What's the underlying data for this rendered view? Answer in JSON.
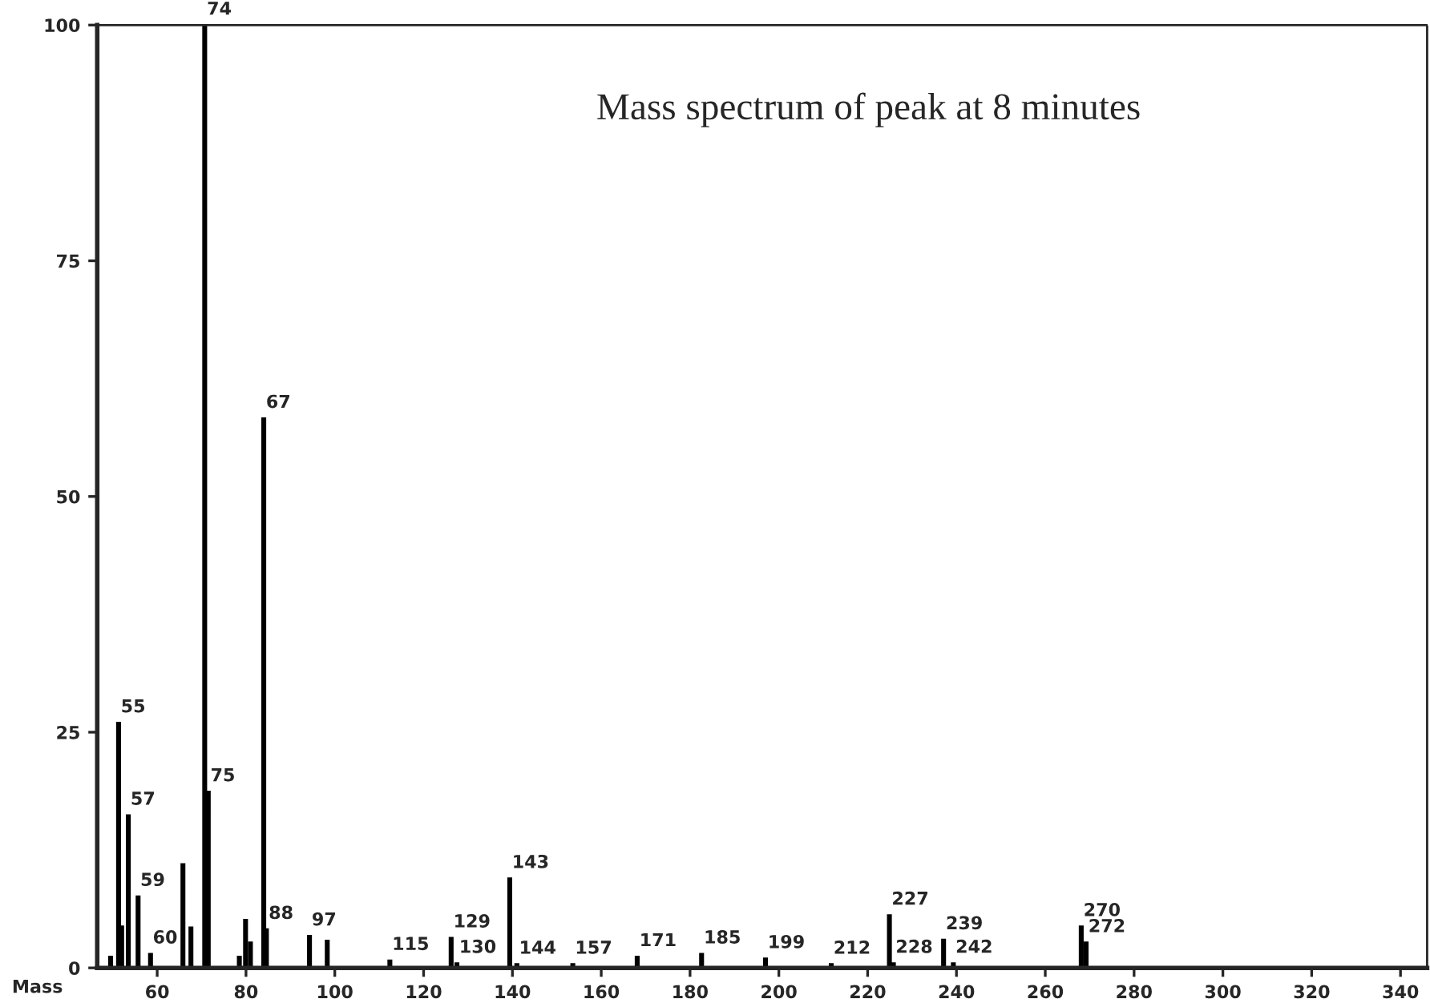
{
  "chart_data": {
    "type": "bar",
    "title": "Mass spectrum of peak at 8 minutes",
    "xlabel": "Mass",
    "x": [
      49.5,
      51.3,
      52.0,
      53.5,
      55.7,
      58.5,
      65.8,
      67.6,
      70.7,
      71.5,
      78.5,
      79.9,
      81.0,
      84.0,
      84.6,
      94.3,
      98.3,
      112.4,
      126.2,
      127.5,
      139.4,
      141.0,
      153.6,
      168.1,
      182.6,
      197.0,
      211.8,
      224.9,
      225.8,
      237.1,
      239.3,
      268.1,
      269.2
    ],
    "series": [
      {
        "color": "#000000",
        "values": [
          1.2,
          26,
          4.4,
          16.2,
          7.6,
          1.5,
          11,
          4.3,
          100,
          18.7,
          1.2,
          5.1,
          2.7,
          58.3,
          4.1,
          3.4,
          2.9,
          0.8,
          3.2,
          0.5,
          9.5,
          0.4,
          0.4,
          1.2,
          1.5,
          1.0,
          0.4,
          5.6,
          0.5,
          3.0,
          0.5,
          4.4,
          2.7
        ]
      }
    ],
    "annotations": [
      {
        "text": "55",
        "x": 51.3,
        "y": 26
      },
      {
        "text": "57",
        "x": 53.5,
        "y": 16.2
      },
      {
        "text": "59",
        "x": 55.7,
        "y": 7.6
      },
      {
        "text": "60",
        "x": 58.5,
        "y": 1.5
      },
      {
        "text": "74",
        "x": 70.7,
        "y": 100
      },
      {
        "text": "75",
        "x": 71.5,
        "y": 18.7
      },
      {
        "text": "67",
        "x": 84.0,
        "y": 58.3
      },
      {
        "text": "88",
        "x": 84.6,
        "y": 4.1
      },
      {
        "text": "97",
        "x": 94.3,
        "y": 3.4
      },
      {
        "text": "115",
        "x": 112.4,
        "y": 0.8
      },
      {
        "text": "129",
        "x": 126.2,
        "y": 3.2
      },
      {
        "text": "130",
        "x": 127.5,
        "y": 0.5
      },
      {
        "text": "143",
        "x": 139.4,
        "y": 9.5
      },
      {
        "text": "144",
        "x": 141.0,
        "y": 0.4
      },
      {
        "text": "157",
        "x": 153.6,
        "y": 0.4
      },
      {
        "text": "171",
        "x": 168.1,
        "y": 1.2
      },
      {
        "text": "185",
        "x": 182.6,
        "y": 1.5
      },
      {
        "text": "199",
        "x": 197.0,
        "y": 1.0
      },
      {
        "text": "212",
        "x": 211.8,
        "y": 0.4
      },
      {
        "text": "227",
        "x": 224.9,
        "y": 5.6
      },
      {
        "text": "228",
        "x": 225.8,
        "y": 0.5
      },
      {
        "text": "239",
        "x": 237.1,
        "y": 3.0
      },
      {
        "text": "242",
        "x": 239.3,
        "y": 0.5
      },
      {
        "text": "270",
        "x": 268.1,
        "y": 4.4
      },
      {
        "text": "272",
        "x": 269.2,
        "y": 2.7
      }
    ],
    "xlim": [
      46.5,
      346
    ],
    "xticks": [
      60,
      80,
      100,
      120,
      140,
      160,
      180,
      200,
      220,
      240,
      260,
      280,
      300,
      320,
      340
    ],
    "ylim": [
      0,
      100
    ],
    "yticks": [
      0,
      25,
      50,
      75,
      100
    ],
    "grid": false,
    "legend": false
  }
}
